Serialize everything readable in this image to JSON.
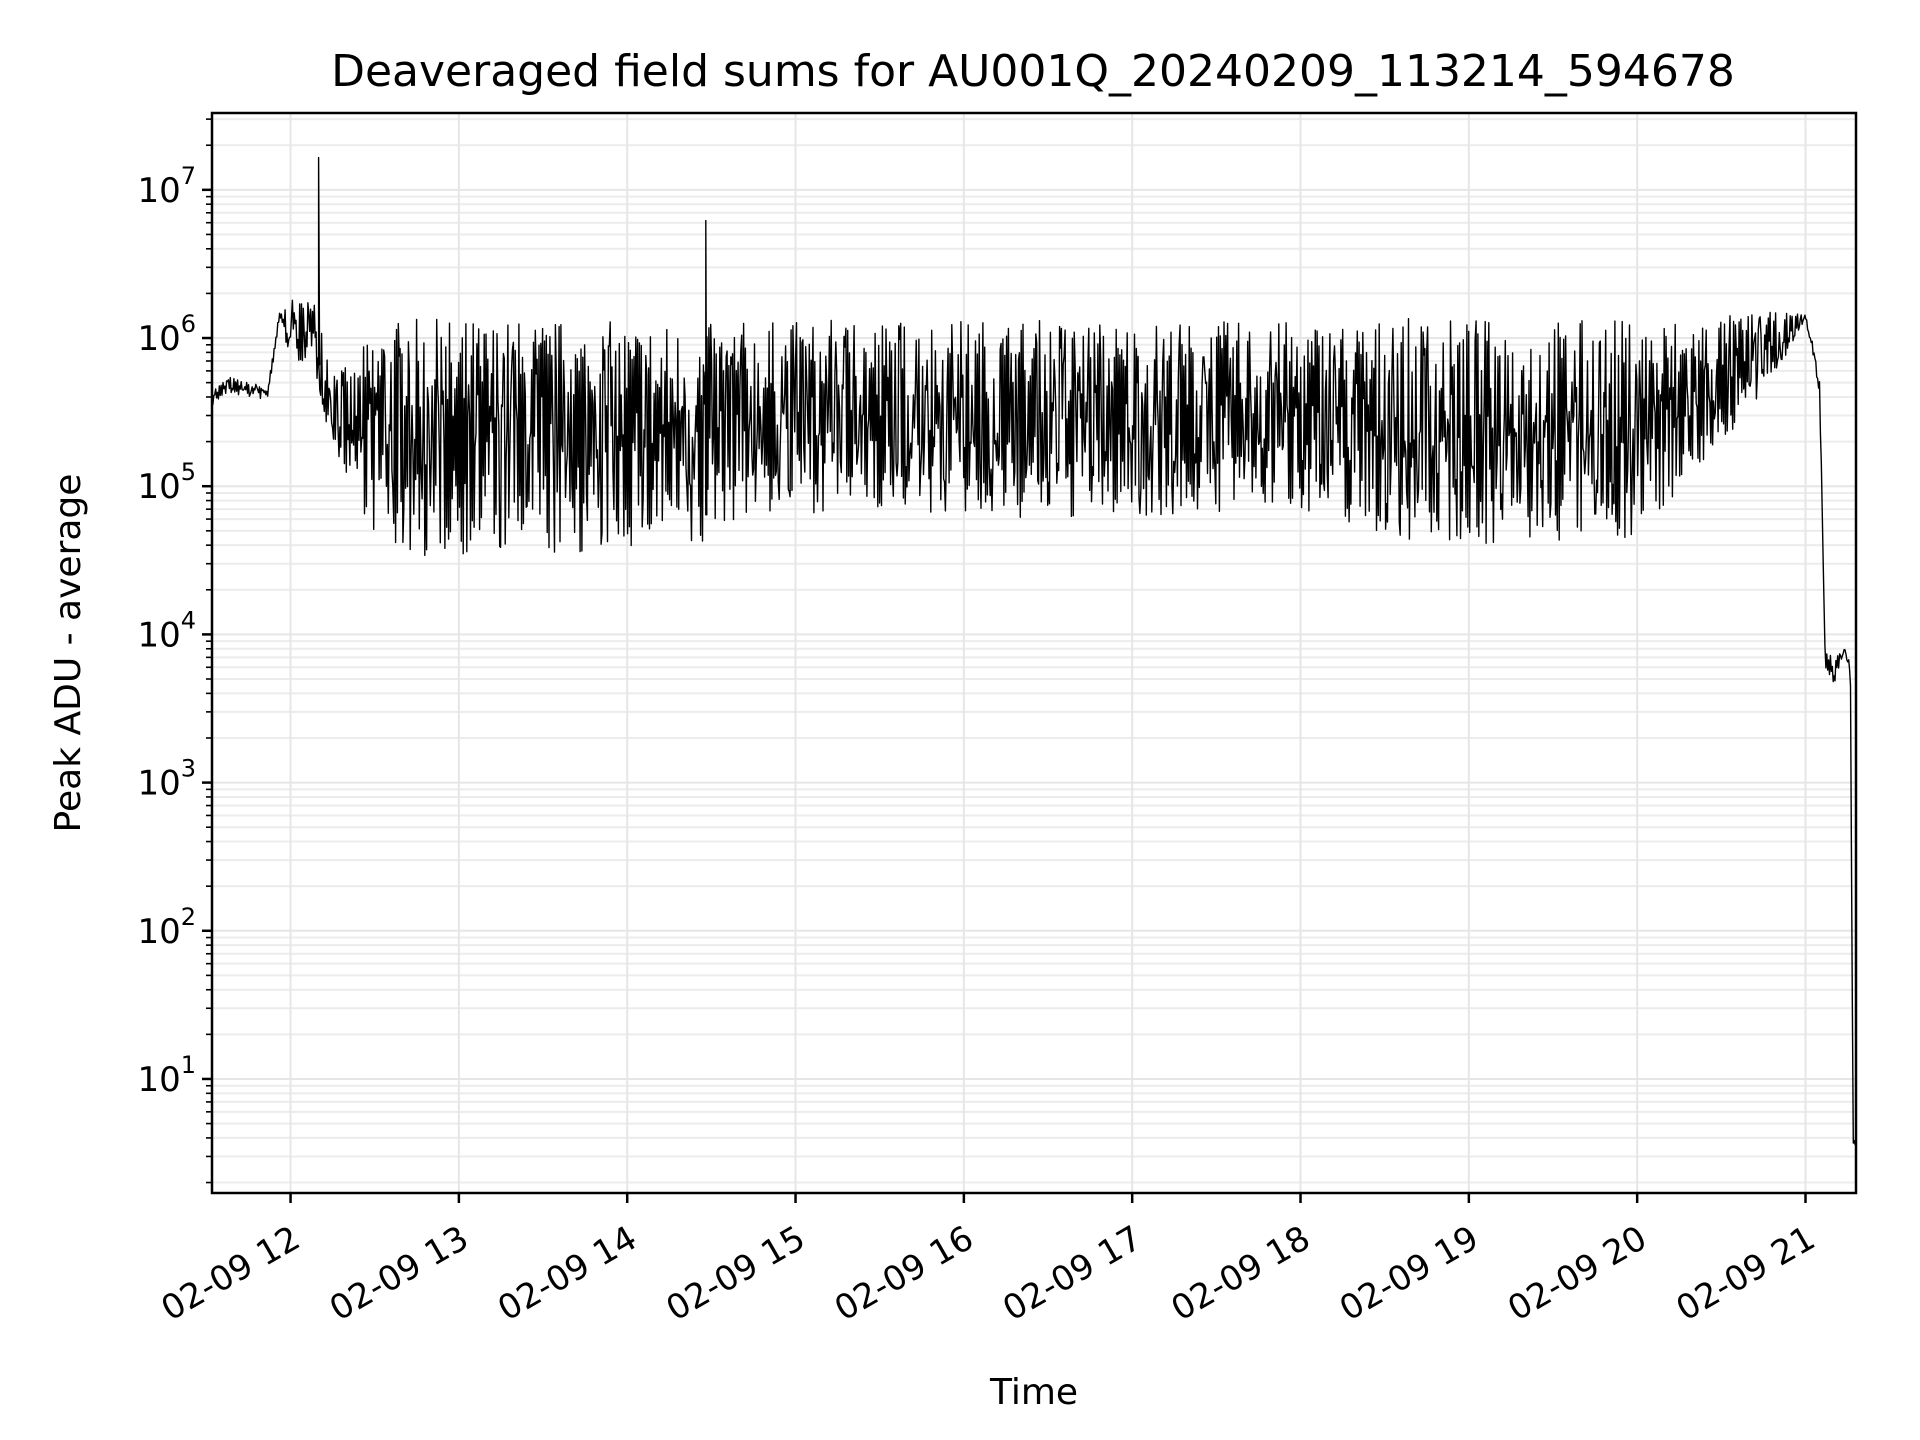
{
  "chart_data": {
    "type": "line",
    "title": "Deaveraged field sums for AU001Q_20240209_113214_594678",
    "xlabel": "Time",
    "ylabel": "Peak ADU - average",
    "yscale": "log",
    "grid": true,
    "color": "#000000",
    "xlim": [
      "2024-02-09 11:32",
      "2024-02-09 21:18"
    ],
    "ylim": [
      1.7,
      33000000
    ],
    "x_ticks": [
      "02-09 12",
      "02-09 13",
      "02-09 14",
      "02-09 15",
      "02-09 16",
      "02-09 17",
      "02-09 18",
      "02-09 19",
      "02-09 20",
      "02-09 21"
    ],
    "y_ticks": [
      {
        "base": "10",
        "exp": "1"
      },
      {
        "base": "10",
        "exp": "2"
      },
      {
        "base": "10",
        "exp": "3"
      },
      {
        "base": "10",
        "exp": "4"
      },
      {
        "base": "10",
        "exp": "5"
      },
      {
        "base": "10",
        "exp": "6"
      },
      {
        "base": "10",
        "exp": "7"
      }
    ],
    "series": [
      {
        "x": [
          "2024-02-09 11:32",
          "2024-02-09 11:38",
          "2024-02-09 11:45",
          "2024-02-09 11:52",
          "2024-02-09 11:56",
          "2024-02-09 12:00",
          "2024-02-09 12:08",
          "2024-02-09 12:10",
          "2024-02-09 12:12",
          "2024-02-09 12:15",
          "2024-02-09 12:22",
          "2024-02-09 12:30",
          "2024-02-09 12:38",
          "2024-02-09 12:50",
          "2024-02-09 13:05",
          "2024-02-09 13:30",
          "2024-02-09 13:50",
          "2024-02-09 14:10",
          "2024-02-09 14:26",
          "2024-02-09 14:30",
          "2024-02-09 14:40",
          "2024-02-09 15:00",
          "2024-02-09 15:30",
          "2024-02-09 16:00",
          "2024-02-09 16:30",
          "2024-02-09 17:00",
          "2024-02-09 17:30",
          "2024-02-09 18:00",
          "2024-02-09 18:30",
          "2024-02-09 19:00",
          "2024-02-09 19:30",
          "2024-02-09 20:00",
          "2024-02-09 20:25",
          "2024-02-09 20:45",
          "2024-02-09 21:00",
          "2024-02-09 21:05",
          "2024-02-09 21:07",
          "2024-02-09 21:10",
          "2024-02-09 21:14",
          "2024-02-09 21:16",
          "2024-02-09 21:17",
          "2024-02-09 21:18"
        ],
        "low": [
          350000,
          420000,
          400000,
          380000,
          1300000,
          700000,
          650000,
          450000,
          300000,
          180000,
          100000,
          45000,
          35000,
          32000,
          35000,
          32000,
          35000,
          40000,
          30000,
          50000,
          60000,
          65000,
          70000,
          60000,
          58000,
          62000,
          65000,
          70000,
          45000,
          40000,
          40000,
          45000,
          150000,
          400000,
          1350000,
          400000,
          6000,
          4500,
          7500,
          5500,
          3.6,
          3.6
        ],
        "high": [
          450000,
          550000,
          500000,
          480000,
          1500000,
          1800000,
          1800000,
          1700000,
          1200000,
          700000,
          600000,
          1300000,
          1350000,
          1350000,
          1350000,
          1350000,
          1300000,
          1300000,
          1200000,
          1250000,
          1300000,
          1300000,
          1350000,
          1350000,
          1350000,
          1300000,
          1300000,
          1300000,
          1350000,
          1350000,
          1350000,
          1350000,
          1400000,
          1500000,
          1450000,
          600000,
          8000,
          7000,
          8000,
          6500,
          4.0,
          3.6
        ],
        "spikes": [
          {
            "x": "2024-02-09 12:10",
            "y": 16500000
          },
          {
            "x": "2024-02-09 14:28",
            "y": 6200000
          }
        ]
      }
    ]
  }
}
